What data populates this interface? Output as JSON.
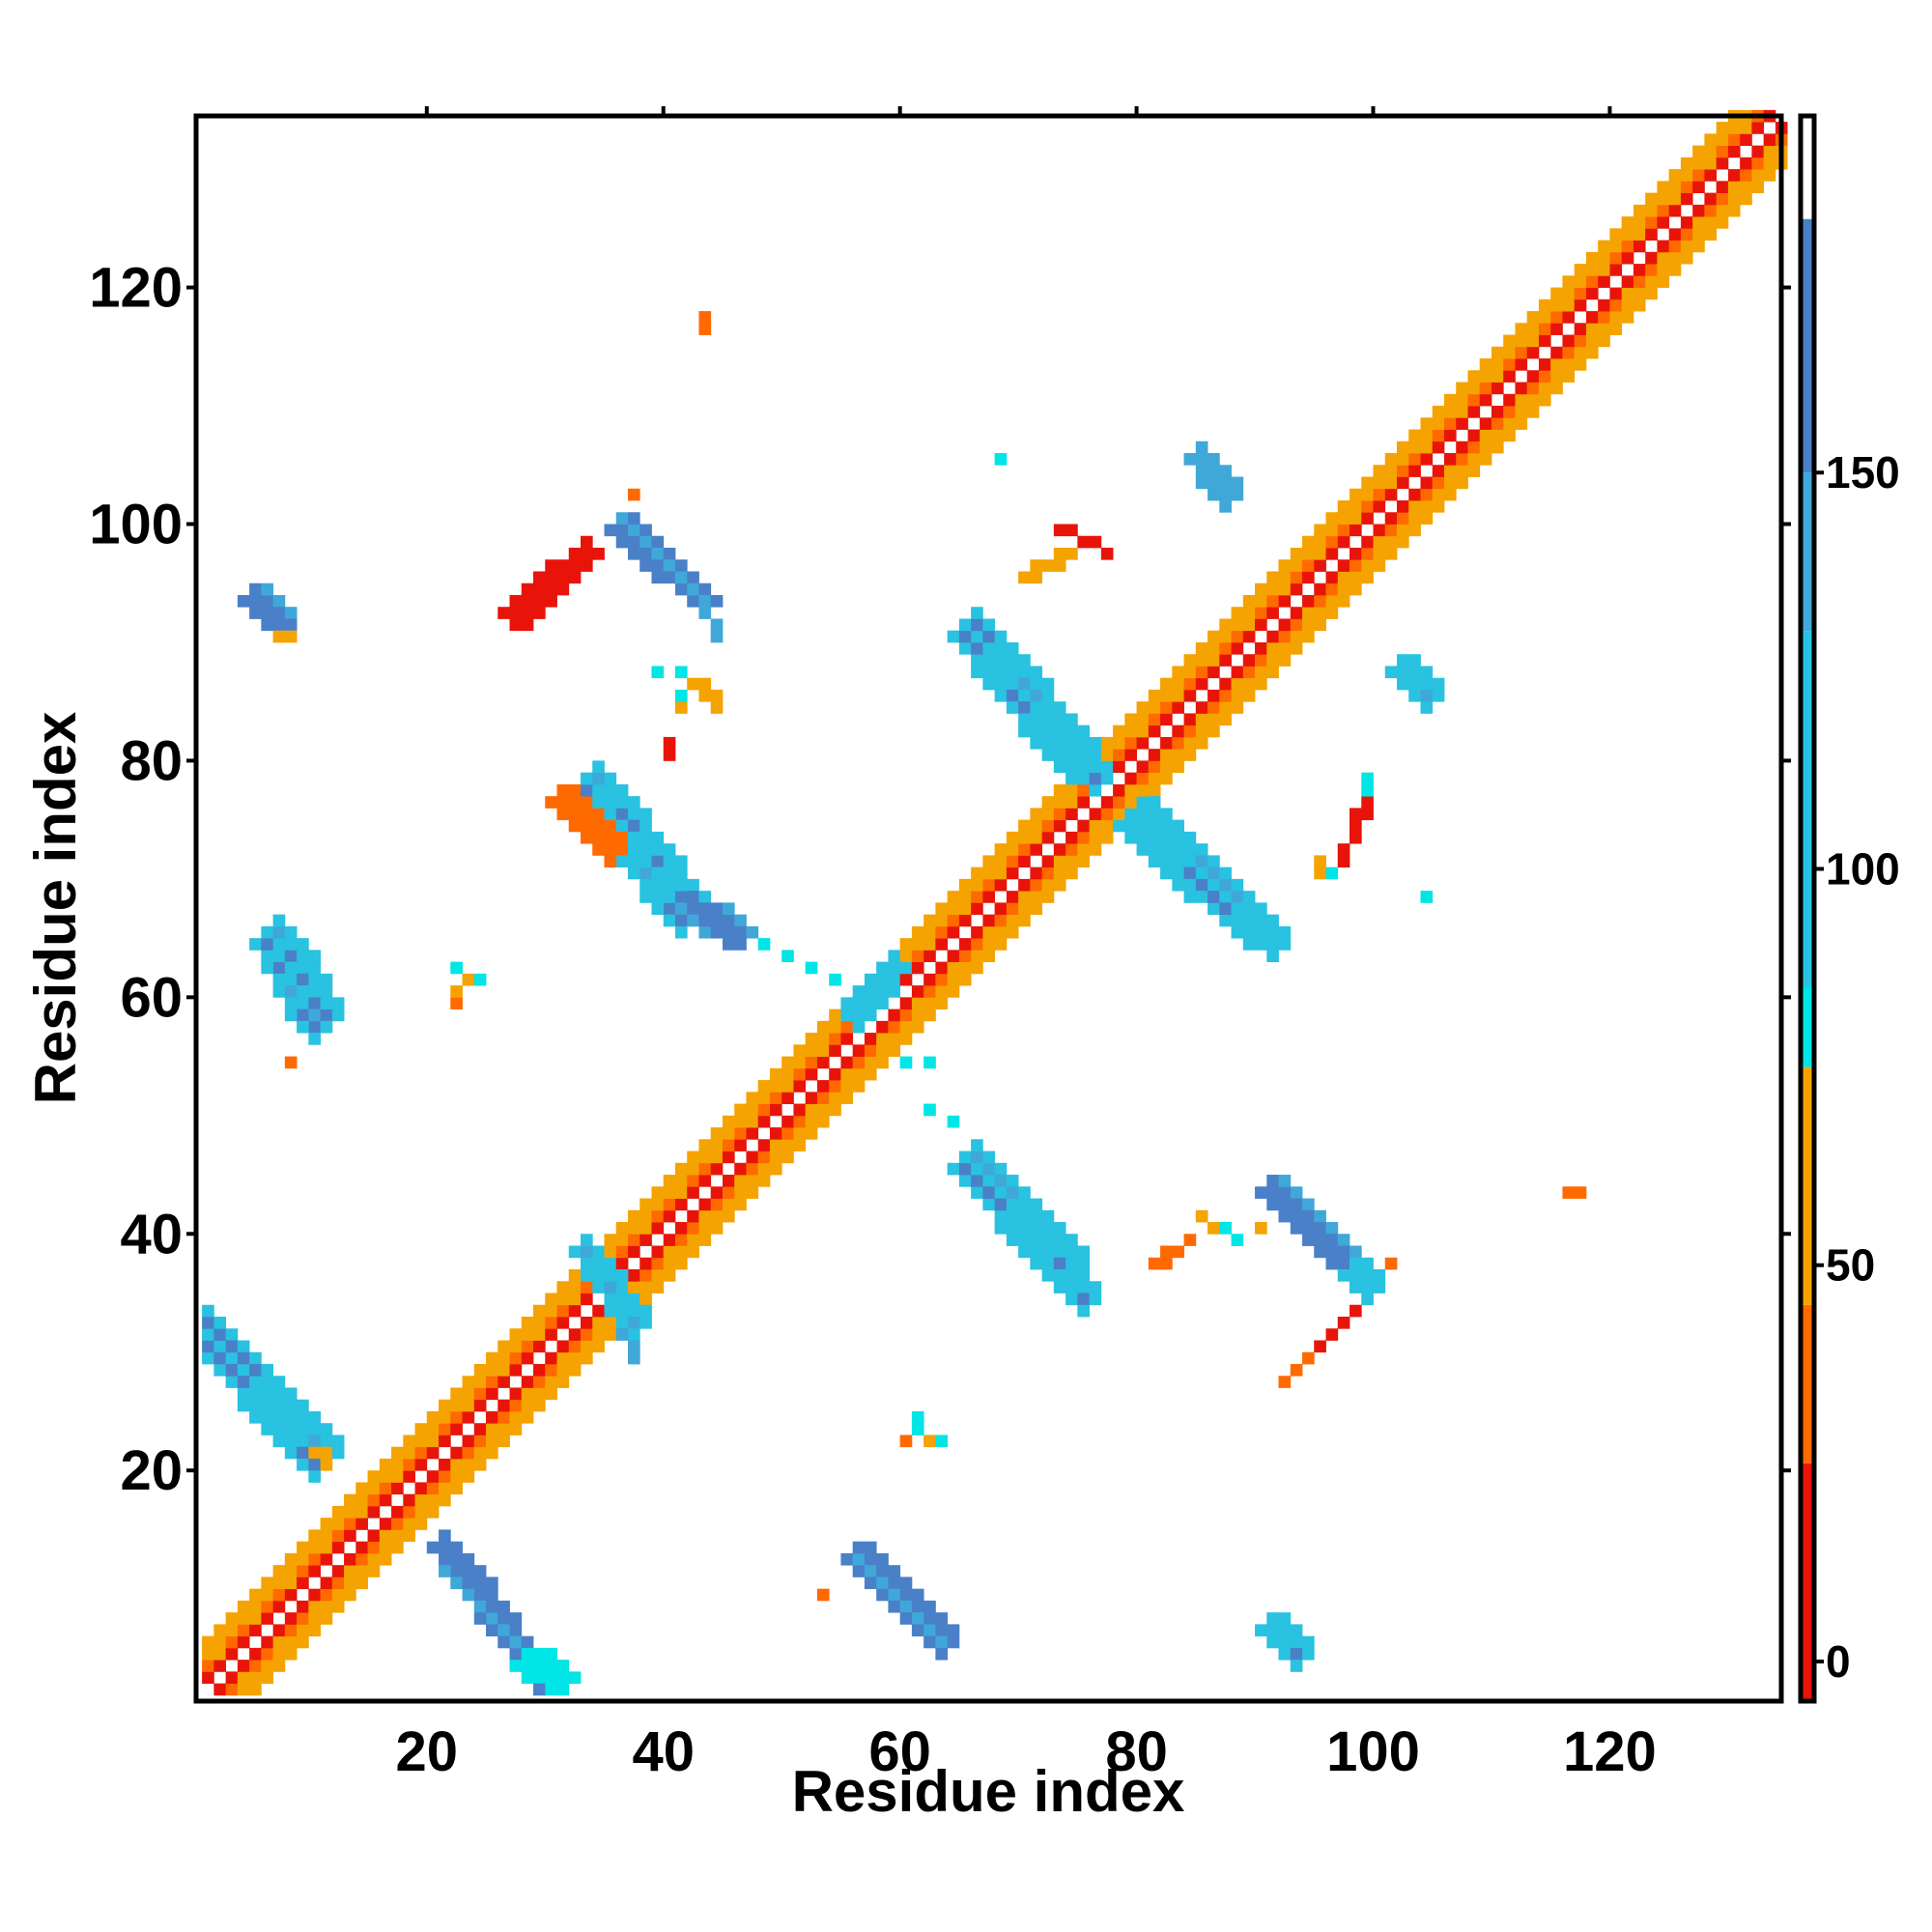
{
  "chart_data": {
    "type": "heatmap",
    "title": "",
    "xlabel": "Residue index",
    "ylabel": "Residue index",
    "xlim": [
      1,
      134
    ],
    "ylim": [
      1,
      134
    ],
    "x_ticks": [
      20,
      40,
      60,
      80,
      100,
      120
    ],
    "y_ticks": [
      20,
      40,
      60,
      80,
      100,
      120
    ],
    "grid": false,
    "colorbar": {
      "ticks": [
        0,
        50,
        100,
        150
      ],
      "range": [
        -5,
        195
      ],
      "bins": [
        {
          "from": -5,
          "to": 25,
          "color": "#e8140a"
        },
        {
          "from": 25,
          "to": 45,
          "color": "#ff6a00"
        },
        {
          "from": 45,
          "to": 75,
          "color": "#f5a300"
        },
        {
          "from": 75,
          "to": 85,
          "color": "#00e5e5"
        },
        {
          "from": 85,
          "to": 130,
          "color": "#29c2e0"
        },
        {
          "from": 130,
          "to": 150,
          "color": "#3fa8d8"
        },
        {
          "from": 150,
          "to": 182,
          "color": "#4a80c8"
        },
        {
          "from": 182,
          "to": 195,
          "color": "#ffffff"
        }
      ]
    },
    "description_of_values": "pairwise residue angle/distance map; main diagonal band of near-parallel contacts (values 0-75), off-diagonal beta-sheet contacts with values 85-180",
    "diagonal_band": {
      "from": 1,
      "to": 134,
      "halfwidth": 4
    },
    "segments": [
      {
        "x": [
          1,
          10
        ],
        "y": [
          31,
          21
        ],
        "w": 1.6,
        "v": 150
      },
      {
        "x": [
          10,
          11
        ],
        "y": [
          21,
          20
        ],
        "w": 0.6,
        "v": 60
      },
      {
        "x": [
          21,
          29
        ],
        "y": [
          13,
          2
        ],
        "w": 1.4,
        "v": 150
      },
      {
        "x": [
          28,
          31
        ],
        "y": [
          3,
          2
        ],
        "w": 0.8,
        "v": 80
      },
      {
        "x": [
          7,
          10
        ],
        "y": [
          64,
          58
        ],
        "w": 1.5,
        "v": 150
      },
      {
        "x": [
          5,
          7
        ],
        "y": [
          93,
          91
        ],
        "w": 1.2,
        "v": 160
      },
      {
        "x": [
          7,
          8
        ],
        "y": [
          90,
          90
        ],
        "w": 0.5,
        "v": 60
      },
      {
        "x": [
          34,
          41
        ],
        "y": [
          77,
          67
        ],
        "w": 1.5,
        "v": 160
      },
      {
        "x": [
          41,
          46
        ],
        "y": [
          67,
          65
        ],
        "w": 1.2,
        "v": 150
      },
      {
        "x": [
          31,
          35
        ],
        "y": [
          76,
          72
        ],
        "w": 0.8,
        "v": 40
      },
      {
        "x": [
          36,
          43
        ],
        "y": [
          99,
          93
        ],
        "w": 1.4,
        "v": 150
      },
      {
        "x": [
          43,
          44
        ],
        "y": [
          92,
          90
        ],
        "w": 0.7,
        "v": 140
      },
      {
        "x": [
          27,
          33
        ],
        "y": [
          92,
          97
        ],
        "w": 0.8,
        "v": 20
      },
      {
        "x": [
          42,
          44
        ],
        "y": [
          86,
          84
        ],
        "w": 0.7,
        "v": 50
      },
      {
        "x": [
          66,
          74
        ],
        "y": [
          90,
          80
        ],
        "w": 1.6,
        "v": 150
      },
      {
        "x": [
          74,
          76
        ],
        "y": [
          80,
          78
        ],
        "w": 1.0,
        "v": 160
      },
      {
        "x": [
          80,
          89
        ],
        "y": [
          74,
          66
        ],
        "w": 1.6,
        "v": 150
      },
      {
        "x": [
          89,
          91
        ],
        "y": [
          66,
          64
        ],
        "w": 0.8,
        "v": 90
      },
      {
        "x": [
          66,
          73
        ],
        "y": [
          45,
          37
        ],
        "w": 1.6,
        "v": 150
      },
      {
        "x": [
          73,
          75
        ],
        "y": [
          37,
          34
        ],
        "w": 1.0,
        "v": 160
      },
      {
        "x": [
          91,
          98
        ],
        "y": [
          43,
          36
        ],
        "w": 1.4,
        "v": 150
      },
      {
        "x": [
          98,
          99
        ],
        "y": [
          36,
          35
        ],
        "w": 0.8,
        "v": 90
      },
      {
        "x": [
          85,
          87
        ],
        "y": [
          105,
          102
        ],
        "w": 1.2,
        "v": 140
      },
      {
        "x": [
          102,
          104
        ],
        "y": [
          87,
          85
        ],
        "w": 1.0,
        "v": 130
      },
      {
        "x": [
          56,
          63
        ],
        "y": [
          12,
          5
        ],
        "w": 1.2,
        "v": 150
      },
      {
        "x": [
          91,
          93
        ],
        "y": [
          6,
          4
        ],
        "w": 1.0,
        "v": 160
      },
      {
        "x": [
          73,
          77
        ],
        "y": [
          99,
          97
        ],
        "w": 0.7,
        "v": 20
      },
      {
        "x": [
          70,
          74
        ],
        "y": [
          95,
          97
        ],
        "w": 0.7,
        "v": 50
      },
      {
        "x": [
          95,
          98
        ],
        "y": [
          30,
          33
        ],
        "w": 0.7,
        "v": 20
      },
      {
        "x": [
          92,
          94
        ],
        "y": [
          27,
          29
        ],
        "w": 0.7,
        "v": 40
      },
      {
        "x": [
          97,
          99
        ],
        "y": [
          71,
          76
        ],
        "w": 0.7,
        "v": 20
      },
      {
        "x": [
          81,
          84
        ],
        "y": [
          37,
          39
        ],
        "w": 0.7,
        "v": 30
      },
      {
        "x": [
          56,
          59
        ],
        "y": [
          58,
          62
        ],
        "w": 1.0,
        "v": 100
      },
      {
        "x": [
          33,
          37
        ],
        "y": [
          38,
          32
        ],
        "w": 1.0,
        "v": 140
      }
    ],
    "points": [
      {
        "x": 43,
        "y": 116,
        "v": 40
      },
      {
        "x": 43,
        "y": 117,
        "v": 40
      },
      {
        "x": 37,
        "y": 102,
        "v": 40
      },
      {
        "x": 68,
        "y": 105,
        "v": 80
      },
      {
        "x": 8,
        "y": 54,
        "v": 30
      },
      {
        "x": 22,
        "y": 59,
        "v": 40
      },
      {
        "x": 22,
        "y": 60,
        "v": 50
      },
      {
        "x": 22,
        "y": 62,
        "v": 80
      },
      {
        "x": 23,
        "y": 61,
        "v": 60
      },
      {
        "x": 24,
        "y": 61,
        "v": 80
      },
      {
        "x": 40,
        "y": 80,
        "v": 20
      },
      {
        "x": 40,
        "y": 81,
        "v": 10
      },
      {
        "x": 41,
        "y": 84,
        "v": 60
      },
      {
        "x": 41,
        "y": 85,
        "v": 80
      },
      {
        "x": 39,
        "y": 87,
        "v": 80
      },
      {
        "x": 41,
        "y": 87,
        "v": 80
      },
      {
        "x": 48,
        "y": 64,
        "v": 80
      },
      {
        "x": 50,
        "y": 63,
        "v": 80
      },
      {
        "x": 52,
        "y": 62,
        "v": 80
      },
      {
        "x": 54,
        "y": 61,
        "v": 80
      },
      {
        "x": 60,
        "y": 54,
        "v": 80
      },
      {
        "x": 62,
        "y": 54,
        "v": 80
      },
      {
        "x": 62,
        "y": 50,
        "v": 80
      },
      {
        "x": 64,
        "y": 49,
        "v": 80
      },
      {
        "x": 61,
        "y": 23,
        "v": 80
      },
      {
        "x": 61,
        "y": 24,
        "v": 80
      },
      {
        "x": 60,
        "y": 22,
        "v": 40
      },
      {
        "x": 62,
        "y": 22,
        "v": 60
      },
      {
        "x": 63,
        "y": 22,
        "v": 80
      },
      {
        "x": 53,
        "y": 9,
        "v": 40
      },
      {
        "x": 85,
        "y": 41,
        "v": 50
      },
      {
        "x": 86,
        "y": 40,
        "v": 60
      },
      {
        "x": 87,
        "y": 40,
        "v": 80
      },
      {
        "x": 88,
        "y": 39,
        "v": 80
      },
      {
        "x": 90,
        "y": 40,
        "v": 60
      },
      {
        "x": 101,
        "y": 37,
        "v": 40
      },
      {
        "x": 95,
        "y": 71,
        "v": 50
      },
      {
        "x": 95,
        "y": 70,
        "v": 60
      },
      {
        "x": 96,
        "y": 70,
        "v": 80
      },
      {
        "x": 104,
        "y": 68,
        "v": 80
      },
      {
        "x": 99,
        "y": 78,
        "v": 80
      },
      {
        "x": 99,
        "y": 77,
        "v": 80
      },
      {
        "x": 116,
        "y": 43,
        "v": 40
      },
      {
        "x": 117,
        "y": 43,
        "v": 40
      },
      {
        "x": 36,
        "y": 31,
        "v": 140
      },
      {
        "x": 37,
        "y": 30,
        "v": 140
      },
      {
        "x": 37,
        "y": 29,
        "v": 140
      }
    ]
  }
}
